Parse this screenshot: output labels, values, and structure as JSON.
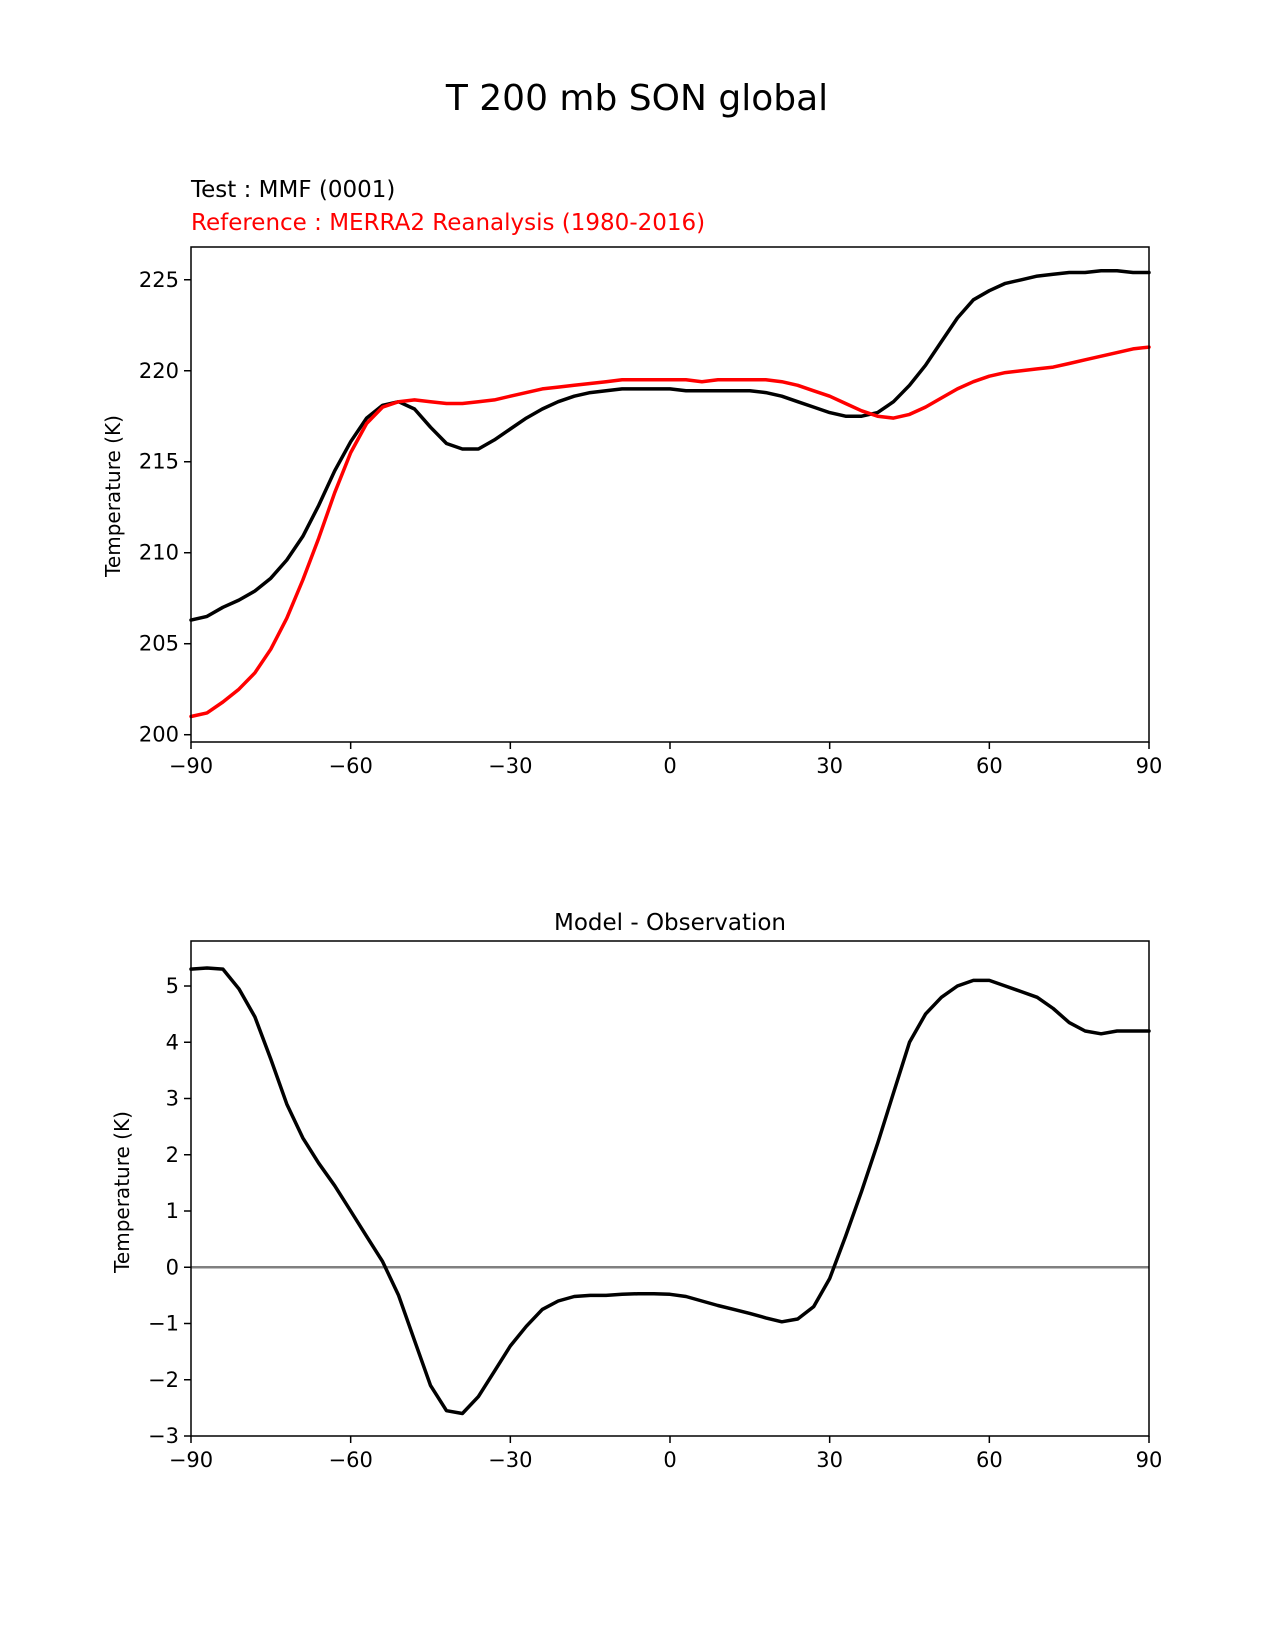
{
  "figure": {
    "title": "T 200 mb SON global"
  },
  "chart_data": [
    {
      "type": "line",
      "title": "",
      "test_label": "Test : MMF (0001)",
      "reference_label": "Reference : MERRA2 Reanalysis (1980-2016)",
      "xlabel": "",
      "ylabel": "Temperature (K)",
      "xlim": [
        -90,
        90
      ],
      "ylim": [
        199.6,
        226.8
      ],
      "xticks": [
        -90,
        -60,
        -30,
        0,
        30,
        60,
        90
      ],
      "xtick_labels": [
        "−90",
        "−60",
        "−30",
        "0",
        "30",
        "60",
        "90"
      ],
      "yticks": [
        200,
        205,
        210,
        215,
        220,
        225
      ],
      "yticks_labels": [
        "200",
        "205",
        "210",
        "215",
        "220",
        "225"
      ],
      "grid": false,
      "series": [
        {
          "color": "#000000",
          "x": [
            -90,
            -87,
            -84,
            -81,
            -78,
            -75,
            -72,
            -69,
            -66,
            -63,
            -60,
            -57,
            -54,
            -51,
            -48,
            -45,
            -42,
            -39,
            -36,
            -33,
            -30,
            -27,
            -24,
            -21,
            -18,
            -15,
            -12,
            -9,
            -6,
            -3,
            0,
            3,
            6,
            9,
            12,
            15,
            18,
            21,
            24,
            27,
            30,
            33,
            36,
            39,
            42,
            45,
            48,
            51,
            54,
            57,
            60,
            63,
            66,
            69,
            72,
            75,
            78,
            81,
            84,
            87,
            90
          ],
          "y": [
            206.3,
            206.5,
            207.0,
            207.4,
            207.9,
            208.6,
            209.6,
            210.9,
            212.6,
            214.5,
            216.1,
            217.4,
            218.1,
            218.3,
            217.9,
            216.9,
            216.0,
            215.7,
            215.7,
            216.2,
            216.8,
            217.4,
            217.9,
            218.3,
            218.6,
            218.8,
            218.9,
            219.0,
            219.0,
            219.0,
            219.0,
            218.9,
            218.9,
            218.9,
            218.9,
            218.9,
            218.8,
            218.6,
            218.3,
            218.0,
            217.7,
            217.5,
            217.5,
            217.7,
            218.3,
            219.2,
            220.3,
            221.6,
            222.9,
            223.9,
            224.4,
            224.8,
            225.0,
            225.2,
            225.3,
            225.4,
            225.4,
            225.5,
            225.5,
            225.4,
            225.4
          ]
        },
        {
          "color": "#ff0000",
          "x": [
            -90,
            -87,
            -84,
            -81,
            -78,
            -75,
            -72,
            -69,
            -66,
            -63,
            -60,
            -57,
            -54,
            -51,
            -48,
            -45,
            -42,
            -39,
            -36,
            -33,
            -30,
            -27,
            -24,
            -21,
            -18,
            -15,
            -12,
            -9,
            -6,
            -3,
            0,
            3,
            6,
            9,
            12,
            15,
            18,
            21,
            24,
            27,
            30,
            33,
            36,
            39,
            42,
            45,
            48,
            51,
            54,
            57,
            60,
            63,
            66,
            69,
            72,
            75,
            78,
            81,
            84,
            87,
            90
          ],
          "y": [
            201.0,
            201.2,
            201.8,
            202.5,
            203.4,
            204.7,
            206.4,
            208.5,
            210.8,
            213.3,
            215.5,
            217.1,
            218.0,
            218.3,
            218.4,
            218.3,
            218.2,
            218.2,
            218.3,
            218.4,
            218.6,
            218.8,
            219.0,
            219.1,
            219.2,
            219.3,
            219.4,
            219.5,
            219.5,
            219.5,
            219.5,
            219.5,
            219.4,
            219.5,
            219.5,
            219.5,
            219.5,
            219.4,
            219.2,
            218.9,
            218.6,
            218.2,
            217.8,
            217.5,
            217.4,
            217.6,
            218.0,
            218.5,
            219.0,
            219.4,
            219.7,
            219.9,
            220.0,
            220.1,
            220.2,
            220.4,
            220.6,
            220.8,
            221.0,
            221.2,
            221.3
          ]
        }
      ]
    },
    {
      "type": "line",
      "title": "Model - Observation",
      "xlabel": "",
      "ylabel": "Temperature (K)",
      "xlim": [
        -90,
        90
      ],
      "ylim": [
        -3.0,
        5.8
      ],
      "xticks": [
        -90,
        -60,
        -30,
        0,
        30,
        60,
        90
      ],
      "xtick_labels": [
        "−90",
        "−60",
        "−30",
        "0",
        "30",
        "60",
        "90"
      ],
      "yticks": [
        -3,
        -2,
        -1,
        0,
        1,
        2,
        3,
        4,
        5
      ],
      "yticks_labels": [
        "−3",
        "−2",
        "−1",
        "0",
        "1",
        "2",
        "3",
        "4",
        "5"
      ],
      "grid": false,
      "zero_line_color": "#808080",
      "series": [
        {
          "color": "#000000",
          "x": [
            -90,
            -87,
            -84,
            -81,
            -78,
            -75,
            -72,
            -69,
            -66,
            -63,
            -60,
            -57,
            -54,
            -51,
            -48,
            -45,
            -42,
            -39,
            -36,
            -33,
            -30,
            -27,
            -24,
            -21,
            -18,
            -15,
            -12,
            -9,
            -6,
            -3,
            0,
            3,
            6,
            9,
            12,
            15,
            18,
            21,
            24,
            27,
            30,
            33,
            36,
            39,
            42,
            45,
            48,
            51,
            54,
            57,
            60,
            63,
            66,
            69,
            72,
            75,
            78,
            81,
            84,
            87,
            90
          ],
          "y": [
            5.3,
            5.32,
            5.3,
            4.95,
            4.45,
            3.7,
            2.9,
            2.3,
            1.85,
            1.45,
            1.0,
            0.55,
            0.1,
            -0.5,
            -1.3,
            -2.1,
            -2.55,
            -2.6,
            -2.3,
            -1.85,
            -1.4,
            -1.05,
            -0.75,
            -0.6,
            -0.52,
            -0.5,
            -0.5,
            -0.48,
            -0.47,
            -0.47,
            -0.48,
            -0.52,
            -0.6,
            -0.68,
            -0.75,
            -0.82,
            -0.9,
            -0.97,
            -0.92,
            -0.7,
            -0.2,
            0.55,
            1.35,
            2.2,
            3.1,
            4.0,
            4.5,
            4.8,
            5.0,
            5.1,
            5.1,
            5.0,
            4.9,
            4.8,
            4.6,
            4.35,
            4.2,
            4.15,
            4.2,
            4.2,
            4.2
          ]
        }
      ]
    }
  ]
}
